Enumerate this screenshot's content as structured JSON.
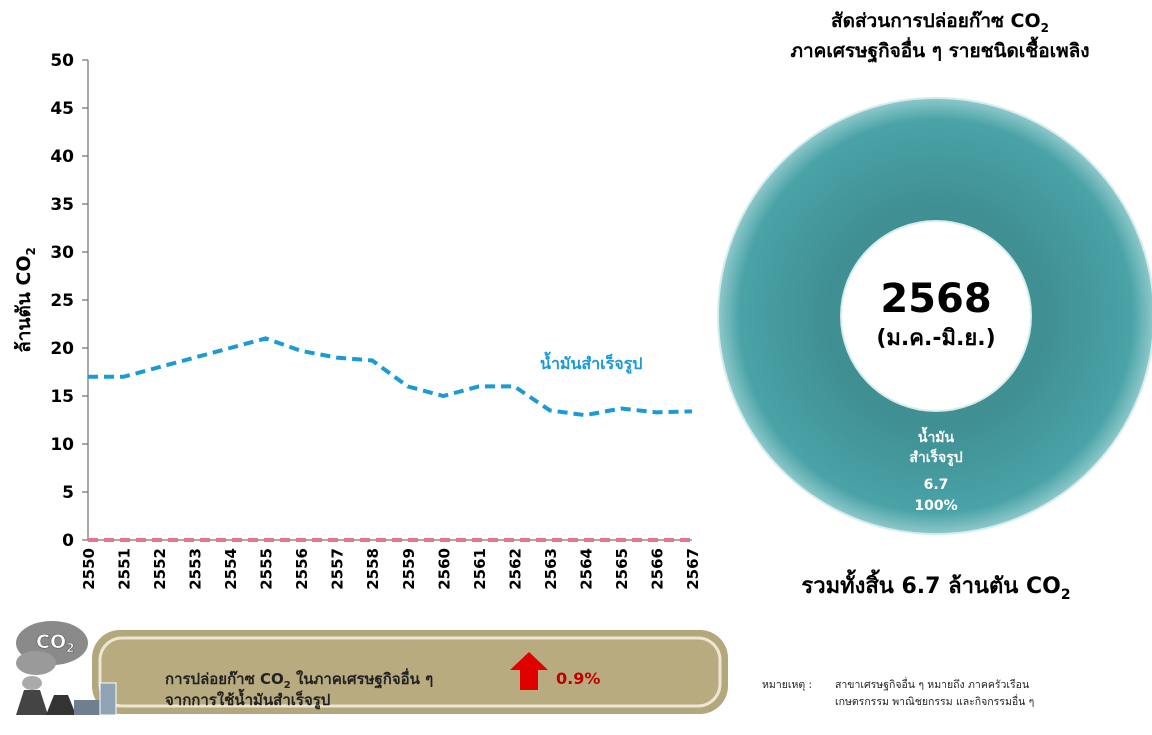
{
  "chart_data": [
    {
      "type": "line",
      "y_label": "ล้านตัน CO",
      "y_label_sub": "2",
      "categories": [
        "2550",
        "2551",
        "2552",
        "2553",
        "2554",
        "2555",
        "2556",
        "2557",
        "2558",
        "2559",
        "2560",
        "2561",
        "2562",
        "2563",
        "2564",
        "2565",
        "2566",
        "2567"
      ],
      "series": [
        {
          "name": "น้ำมันสำเร็จรูป",
          "color": "#1a9ad6",
          "values": [
            17,
            17,
            18,
            19,
            20,
            21,
            19.7,
            19,
            18.7,
            16,
            15,
            16,
            16,
            13.5,
            13,
            13.7,
            13.3,
            13.4
          ]
        },
        {
          "color": "#f2c40c",
          "values": [
            0,
            0,
            0,
            0,
            0,
            0,
            0,
            0,
            0,
            0,
            0,
            0,
            0,
            0,
            0,
            0,
            0,
            0
          ]
        },
        {
          "color": "#e6738f",
          "values": [
            0,
            0,
            0,
            0,
            0,
            0,
            0,
            0,
            0,
            0,
            0,
            0,
            0,
            0,
            0,
            0,
            0,
            0
          ]
        }
      ],
      "ylim": [
        0,
        50
      ],
      "yticks": [
        0,
        5,
        10,
        15,
        20,
        25,
        30,
        35,
        40,
        45,
        50
      ]
    },
    {
      "type": "pie",
      "title": "สัดส่วนการปล่อยก๊าซ CO",
      "title_sub": "2",
      "subtitle": "ภาคเศรษฐกิจอื่น ๆ รายชนิดเชื้อเพลิง",
      "center_title": "2568",
      "center_subtitle": "(ม.ค.-มิ.ย.)",
      "categories": [
        "น้ำมัน\nสำเร็จรูป"
      ],
      "values": [
        6.7
      ],
      "shares": [
        100
      ],
      "share_labels": [
        "100%"
      ],
      "color": "#419b9e",
      "total": "รวมทั้งสิ้น 6.7 ล้านตัน CO",
      "total_sub": "2"
    }
  ],
  "icon": {
    "text": "CO",
    "sub": "2"
  },
  "banner": {
    "line1": "การปล่อยก๊าซ CO",
    "line1_sub": "2",
    "line1_end": " ในภาคเศรษฐกิจอื่น ๆ",
    "line2": "จากการใช้น้ำมันสำเร็จรูป",
    "change": "0.9%"
  },
  "note": {
    "label": "หมายเหตุ :",
    "line1": "สาขาเศรษฐกิจอื่น ๆ หมายถึง ภาคครัวเรือน",
    "line2": "เกษตรกรรม พาณิชยกรรม และกิจกรรมอื่น ๆ"
  }
}
